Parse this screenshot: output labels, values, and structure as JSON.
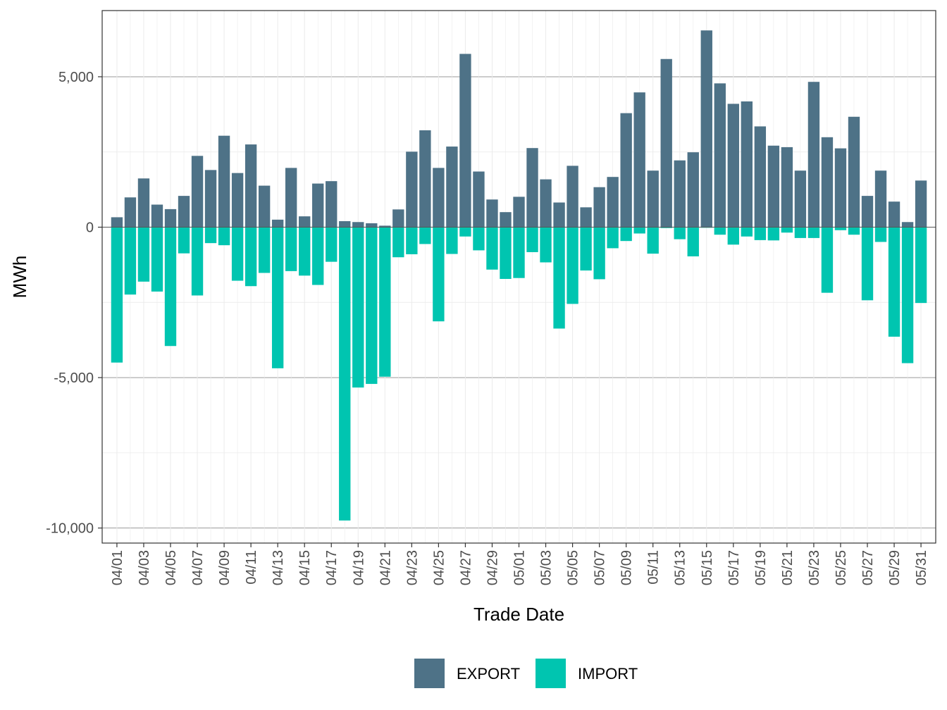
{
  "chart_data": {
    "type": "bar",
    "title": "",
    "xlabel": "Trade Date",
    "ylabel": "MWh",
    "ylim": [
      -10500,
      7200
    ],
    "y_ticks": [
      5000,
      0,
      -5000,
      -10000
    ],
    "y_tick_labels": [
      "5,000",
      "0",
      "-5,000",
      "-10,000"
    ],
    "legend_position": "bottom",
    "colors": {
      "EXPORT": "#4e7287",
      "IMPORT": "#00c5b0"
    },
    "categories": [
      "04/01",
      "04/02",
      "04/03",
      "04/04",
      "04/05",
      "04/06",
      "04/07",
      "04/08",
      "04/09",
      "04/10",
      "04/11",
      "04/12",
      "04/13",
      "04/14",
      "04/15",
      "04/16",
      "04/17",
      "04/18",
      "04/19",
      "04/20",
      "04/21",
      "04/22",
      "04/23",
      "04/24",
      "04/25",
      "04/26",
      "04/27",
      "04/28",
      "04/29",
      "04/30",
      "05/01",
      "05/02",
      "05/03",
      "05/04",
      "05/05",
      "05/06",
      "05/07",
      "05/08",
      "05/09",
      "05/10",
      "05/11",
      "05/12",
      "05/13",
      "05/14",
      "05/15",
      "05/16",
      "05/17",
      "05/18",
      "05/19",
      "05/20",
      "05/21",
      "05/22",
      "05/23",
      "05/24",
      "05/25",
      "05/26",
      "05/27",
      "05/28",
      "05/29",
      "05/30",
      "05/31"
    ],
    "x_tick_labels": [
      "04/01",
      "04/03",
      "04/05",
      "04/07",
      "04/09",
      "04/11",
      "04/13",
      "04/15",
      "04/17",
      "04/19",
      "04/21",
      "04/23",
      "04/25",
      "04/27",
      "04/29",
      "05/01",
      "05/03",
      "05/05",
      "05/07",
      "05/09",
      "05/11",
      "05/13",
      "05/15",
      "05/17",
      "05/19",
      "05/21",
      "05/23",
      "05/25",
      "05/27",
      "05/29",
      "05/31"
    ],
    "series": [
      {
        "name": "EXPORT",
        "values": [
          330,
          990,
          1620,
          750,
          600,
          1040,
          2370,
          1900,
          3040,
          1800,
          2750,
          1380,
          250,
          1970,
          360,
          1450,
          1530,
          200,
          170,
          130,
          50,
          590,
          2510,
          3220,
          1970,
          2680,
          5760,
          1850,
          920,
          500,
          1010,
          2630,
          1590,
          820,
          2040,
          660,
          1330,
          1670,
          3790,
          4480,
          1880,
          5590,
          2220,
          2490,
          6540,
          4780,
          4100,
          4180,
          3350,
          2710,
          2660,
          1880,
          4830,
          2990,
          2620,
          3670,
          1040,
          1880,
          850,
          170,
          1550
        ]
      },
      {
        "name": "IMPORT",
        "values": [
          -4500,
          -2240,
          -1810,
          -2140,
          -3950,
          -870,
          -2270,
          -530,
          -600,
          -1780,
          -1960,
          -1520,
          -4690,
          -1460,
          -1610,
          -1920,
          -1150,
          -9750,
          -5330,
          -5210,
          -4970,
          -1000,
          -900,
          -560,
          -3130,
          -890,
          -310,
          -770,
          -1410,
          -1720,
          -1690,
          -830,
          -1170,
          -3370,
          -2550,
          -1440,
          -1730,
          -700,
          -460,
          -210,
          -880,
          -30,
          -400,
          -970,
          -20,
          -250,
          -580,
          -310,
          -430,
          -440,
          -180,
          -360,
          -360,
          -2180,
          -100,
          -250,
          -2430,
          -490,
          -3640,
          -4520,
          -2520
        ]
      }
    ]
  }
}
